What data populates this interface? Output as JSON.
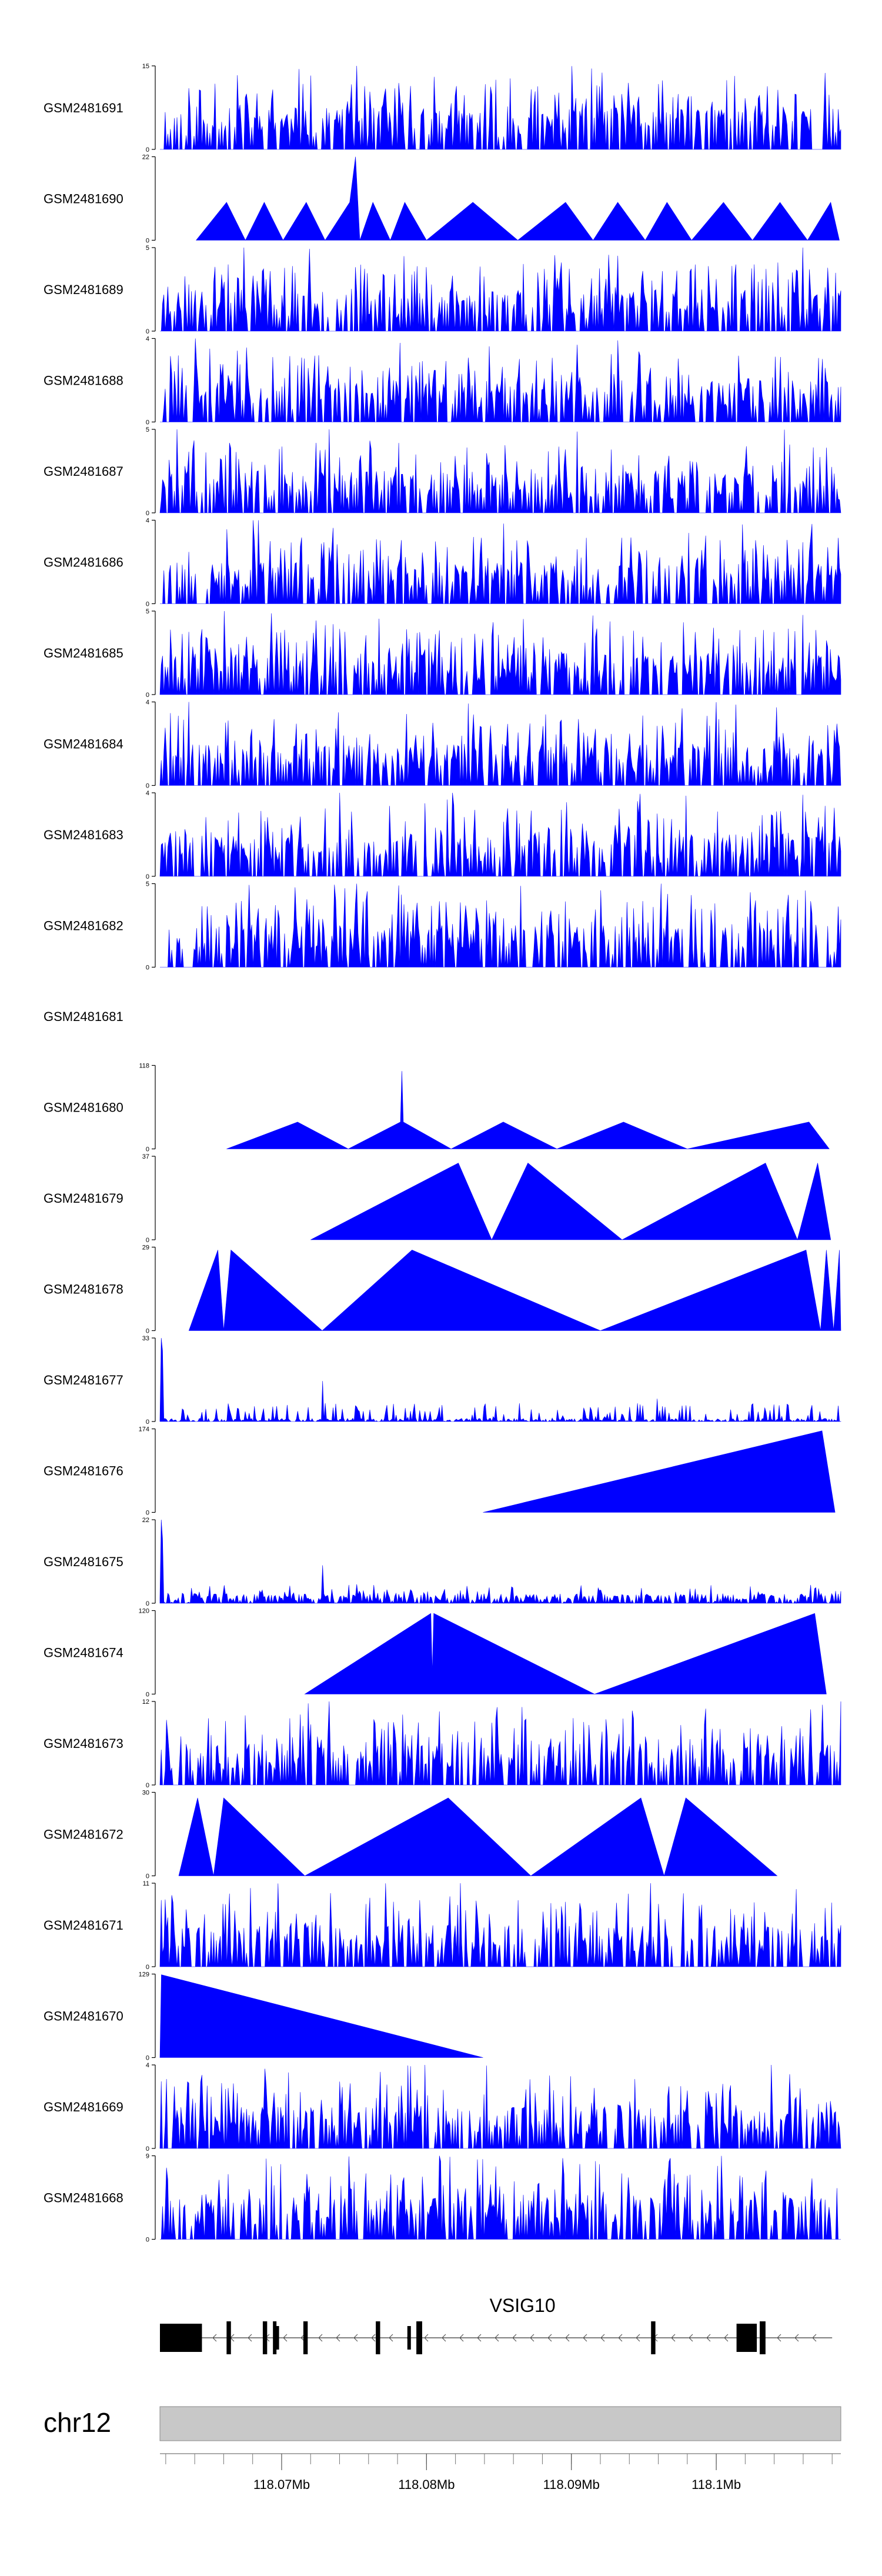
{
  "chart_data": {
    "type": "area",
    "title": "",
    "xlabel": "",
    "ylabel": "",
    "region": {
      "chromosome": "chr12",
      "xlim": [
        118.0616,
        118.1086
      ],
      "unit": "Mb",
      "tick_labels": [
        "118.07Mb",
        "118.08Mb",
        "118.09Mb",
        "118.1Mb"
      ],
      "tick_values": [
        118.07,
        118.08,
        118.09,
        118.1
      ],
      "minor_tick_step": 0.002
    },
    "color": "#0000ff",
    "tracks": [
      {
        "name": "GSM2481691",
        "ymax": 15,
        "kind": "dense",
        "seed": 11,
        "peaks": [
          [
            118.0671,
            8
          ],
          [
            118.0752,
            15
          ],
          [
            118.0746,
            6
          ],
          [
            118.1085,
            3
          ]
        ]
      },
      {
        "name": "GSM2481690",
        "ymax": 22,
        "kind": "tri",
        "points": [
          [
            118.0641,
            0
          ],
          [
            118.0662,
            10
          ],
          [
            118.0675,
            0
          ],
          [
            118.0688,
            10
          ],
          [
            118.0701,
            0
          ],
          [
            118.0717,
            10
          ],
          [
            118.073,
            0
          ],
          [
            118.0747,
            10
          ],
          [
            118.0751,
            22
          ],
          [
            118.0754,
            0
          ],
          [
            118.0763,
            10
          ],
          [
            118.0775,
            0
          ],
          [
            118.0785,
            10
          ],
          [
            118.08,
            0
          ],
          [
            118.0832,
            10
          ],
          [
            118.0863,
            0
          ],
          [
            118.0896,
            10
          ],
          [
            118.0915,
            0
          ],
          [
            118.0932,
            10
          ],
          [
            118.0951,
            0
          ],
          [
            118.0966,
            10
          ],
          [
            118.0983,
            0
          ],
          [
            118.1005,
            10
          ],
          [
            118.1025,
            0
          ],
          [
            118.1044,
            10
          ],
          [
            118.1063,
            0
          ],
          [
            118.1079,
            10
          ],
          [
            118.1085,
            0
          ]
        ]
      },
      {
        "name": "GSM2481689",
        "ymax": 5,
        "kind": "dense",
        "seed": 23,
        "peaks": [
          [
            118.0674,
            5
          ],
          [
            118.106,
            5
          ]
        ]
      },
      {
        "name": "GSM2481688",
        "ymax": 4,
        "kind": "dense",
        "seed": 31,
        "peaks": [
          [
            118.064,
            4
          ]
        ]
      },
      {
        "name": "GSM2481687",
        "ymax": 5,
        "kind": "dense",
        "seed": 47,
        "peaks": [
          [
            118.0628,
            5
          ],
          [
            118.0733,
            5
          ]
        ]
      },
      {
        "name": "GSM2481686",
        "ymax": 4,
        "kind": "dense",
        "seed": 53,
        "peaks": [
          [
            118.0684,
            4
          ],
          [
            118.068,
            4
          ]
        ]
      },
      {
        "name": "GSM2481685",
        "ymax": 5,
        "kind": "dense",
        "seed": 61,
        "peaks": [
          [
            118.066,
            5
          ],
          [
            118.0998,
            4
          ]
        ]
      },
      {
        "name": "GSM2481684",
        "ymax": 4,
        "kind": "dense",
        "seed": 71,
        "peaks": [
          [
            118.0636,
            4
          ],
          [
            118.0739,
            3.5
          ]
        ]
      },
      {
        "name": "GSM2481683",
        "ymax": 4,
        "kind": "dense",
        "seed": 83,
        "peaks": [
          [
            118.074,
            4
          ],
          [
            118.0818,
            4
          ]
        ]
      },
      {
        "name": "GSM2481682",
        "ymax": 5,
        "kind": "dense",
        "seed": 97,
        "peaks": [
          [
            118.0752,
            5
          ],
          [
            118.0962,
            5
          ]
        ]
      },
      {
        "name": "GSM2481681",
        "ymax": null,
        "kind": "empty"
      },
      {
        "name": "GSM2481680",
        "ymax": 118,
        "kind": "tri",
        "points": [
          [
            118.0662,
            0
          ],
          [
            118.0711,
            38
          ],
          [
            118.0746,
            0
          ],
          [
            118.0782,
            38
          ],
          [
            118.0783,
            110
          ],
          [
            118.0784,
            38
          ],
          [
            118.0817,
            0
          ],
          [
            118.0853,
            38
          ],
          [
            118.089,
            0
          ],
          [
            118.0936,
            38
          ],
          [
            118.098,
            0
          ],
          [
            118.1064,
            38
          ],
          [
            118.1078,
            0
          ]
        ]
      },
      {
        "name": "GSM2481679",
        "ymax": 37,
        "kind": "tri",
        "points": [
          [
            118.072,
            0
          ],
          [
            118.0822,
            34
          ],
          [
            118.0845,
            0
          ],
          [
            118.087,
            34
          ],
          [
            118.0935,
            0
          ],
          [
            118.1034,
            34
          ],
          [
            118.1056,
            0
          ],
          [
            118.107,
            34
          ],
          [
            118.1079,
            0
          ]
        ]
      },
      {
        "name": "GSM2481678",
        "ymax": 29,
        "kind": "tri",
        "points": [
          [
            118.0636,
            0
          ],
          [
            118.0656,
            28
          ],
          [
            118.066,
            0
          ],
          [
            118.0665,
            28
          ],
          [
            118.0728,
            0
          ],
          [
            118.079,
            28
          ],
          [
            118.092,
            0
          ],
          [
            118.1062,
            28
          ],
          [
            118.1072,
            0
          ],
          [
            118.1076,
            28
          ],
          [
            118.1081,
            0
          ],
          [
            118.1085,
            28
          ],
          [
            118.1086,
            0
          ]
        ]
      },
      {
        "name": "GSM2481677",
        "ymax": 33,
        "kind": "dense",
        "seed": 101,
        "baseline": 0.04,
        "peaks": [
          [
            118.0617,
            33
          ],
          [
            118.0618,
            28
          ],
          [
            118.067,
            5
          ],
          [
            118.0728,
            16
          ],
          [
            118.0737,
            7
          ],
          [
            118.0959,
            9
          ],
          [
            118.0993,
            3
          ]
        ]
      },
      {
        "name": "GSM2481676",
        "ymax": 174,
        "kind": "tri",
        "points": [
          [
            118.0839,
            0
          ],
          [
            118.1073,
            170
          ],
          [
            118.1082,
            0
          ]
        ]
      },
      {
        "name": "GSM2481675",
        "ymax": 22,
        "kind": "dense",
        "seed": 113,
        "baseline": 0.12,
        "peaks": [
          [
            118.0617,
            22
          ],
          [
            118.0618,
            17
          ],
          [
            118.0728,
            10
          ],
          [
            118.0752,
            5
          ]
        ]
      },
      {
        "name": "GSM2481674",
        "ymax": 120,
        "kind": "tri",
        "points": [
          [
            118.0716,
            0
          ],
          [
            118.0803,
            116
          ],
          [
            118.0804,
            30
          ],
          [
            118.0805,
            116
          ],
          [
            118.0916,
            0
          ],
          [
            118.1068,
            116
          ],
          [
            118.1076,
            0
          ]
        ]
      },
      {
        "name": "GSM2481673",
        "ymax": 12,
        "kind": "dense",
        "seed": 127,
        "peaks": [
          [
            118.0733,
            12
          ],
          [
            118.0675,
            10
          ],
          [
            118.1086,
            12
          ]
        ]
      },
      {
        "name": "GSM2481672",
        "ymax": 30,
        "kind": "tri",
        "points": [
          [
            118.0629,
            0
          ],
          [
            118.0642,
            28
          ],
          [
            118.0653,
            0
          ],
          [
            118.066,
            28
          ],
          [
            118.0716,
            0
          ],
          [
            118.0815,
            28
          ],
          [
            118.0872,
            0
          ],
          [
            118.0948,
            28
          ],
          [
            118.0964,
            0
          ],
          [
            118.0979,
            28
          ],
          [
            118.1042,
            0
          ]
        ]
      },
      {
        "name": "GSM2481671",
        "ymax": 11,
        "kind": "dense",
        "seed": 139,
        "peaks": [
          [
            118.0823,
            11
          ],
          [
            118.0955,
            11
          ]
        ]
      },
      {
        "name": "GSM2481670",
        "ymax": 129,
        "kind": "tri",
        "points": [
          [
            118.0616,
            0
          ],
          [
            118.0617,
            128
          ],
          [
            118.0839,
            0
          ]
        ]
      },
      {
        "name": "GSM2481669",
        "ymax": 4,
        "kind": "dense",
        "seed": 151,
        "peaks": [
          [
            118.1038,
            4
          ]
        ]
      },
      {
        "name": "GSM2481668",
        "ymax": 9,
        "kind": "dense",
        "seed": 163,
        "peaks": [
          [
            118.0809,
            9
          ]
        ]
      }
    ],
    "gene": {
      "name": "VSIG10",
      "start": 118.0616,
      "end": 118.108,
      "strand": "-",
      "exons": [
        [
          118.0616,
          118.0645
        ],
        [
          118.0662,
          118.0665
        ],
        [
          118.0687,
          118.069
        ],
        [
          118.0694,
          118.0696
        ],
        [
          118.0715,
          118.0718
        ],
        [
          118.0765,
          118.0768
        ],
        [
          118.0793,
          118.0797
        ],
        [
          118.0955,
          118.0958
        ],
        [
          118.1014,
          118.1028
        ],
        [
          118.103,
          118.1034
        ]
      ],
      "small_marks": [
        118.0697,
        118.0788,
        118.1026
      ]
    }
  }
}
